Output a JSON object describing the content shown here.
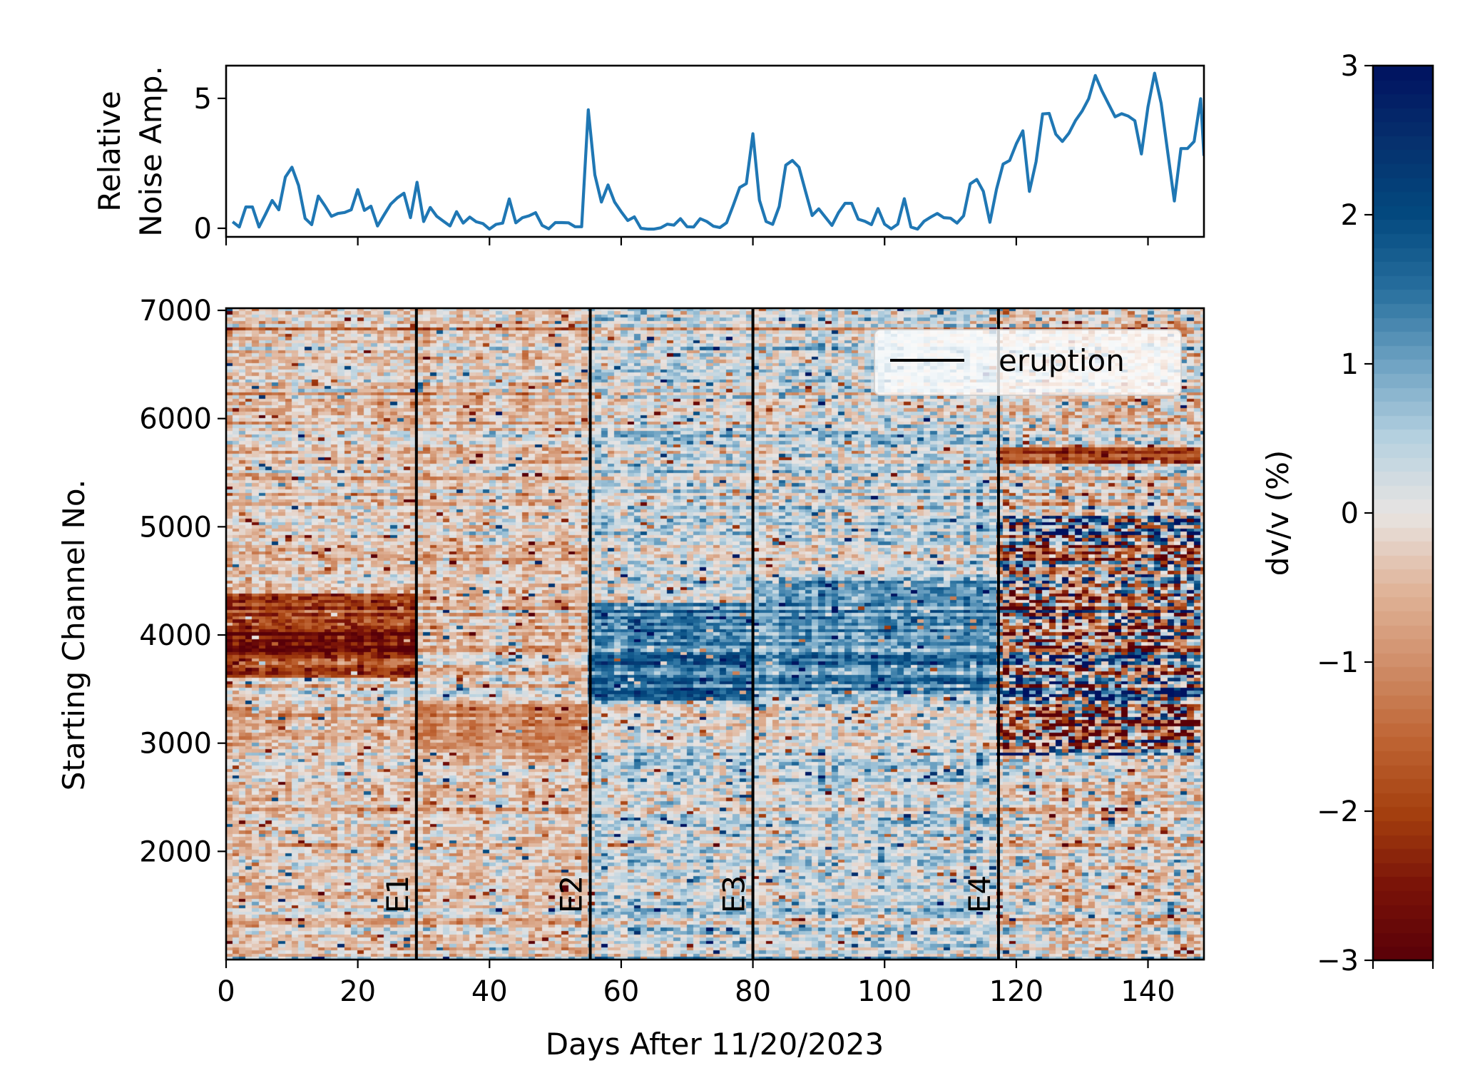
{
  "chart_data": [
    {
      "type": "line",
      "panel": "top",
      "title": "",
      "xlabel": "",
      "ylabel_lines": [
        "Relative",
        "Noise Amp."
      ],
      "xlim": [
        0,
        148.5
      ],
      "ylim": [
        -0.33,
        6.26
      ],
      "xticks": [
        0,
        20,
        40,
        60,
        80,
        100,
        120,
        140
      ],
      "xtick_labels_visible": false,
      "yticks": [
        0,
        5
      ],
      "ytick_labels": [
        "0",
        "5"
      ],
      "line_color": "#1f77b4",
      "series": [
        {
          "name": "Relative Noise Amp.",
          "x": [
            1,
            2,
            3,
            4,
            5,
            6,
            7,
            8,
            9,
            10,
            11,
            12,
            13,
            14,
            15,
            16,
            17,
            18,
            19,
            20,
            21,
            22,
            23,
            24,
            25,
            26,
            27,
            28,
            29,
            30,
            31,
            32,
            33,
            34,
            35,
            36,
            37,
            38,
            39,
            40,
            41,
            42,
            43,
            44,
            45,
            46,
            47,
            48,
            49,
            50,
            51,
            52,
            53,
            54,
            55,
            56,
            57,
            58,
            59,
            60,
            61,
            62,
            63,
            64,
            65,
            66,
            67,
            68,
            69,
            70,
            71,
            72,
            73,
            74,
            75,
            76,
            77,
            78,
            79,
            80,
            81,
            82,
            83,
            84,
            85,
            86,
            87,
            88,
            89,
            90,
            91,
            92,
            93,
            94,
            95,
            96,
            97,
            98,
            99,
            100,
            101,
            102,
            103,
            104,
            105,
            106,
            107,
            108,
            109,
            110,
            111,
            112,
            113,
            114,
            115,
            116,
            117,
            118,
            119,
            120,
            121,
            122,
            123,
            124,
            125,
            126,
            127,
            128,
            129,
            130,
            131,
            132,
            133,
            134,
            135,
            136,
            137,
            138,
            139,
            140,
            141,
            142,
            143,
            144,
            145,
            146,
            147,
            148,
            148.5
          ],
          "y": [
            0.25,
            0.05,
            0.82,
            0.82,
            0.05,
            0.55,
            1.07,
            0.71,
            1.97,
            2.35,
            1.65,
            0.38,
            0.14,
            1.24,
            0.87,
            0.46,
            0.57,
            0.61,
            0.71,
            1.49,
            0.69,
            0.85,
            0.09,
            0.52,
            0.93,
            1.17,
            1.35,
            0.41,
            1.77,
            0.26,
            0.8,
            0.46,
            0.27,
            0.09,
            0.64,
            0.2,
            0.43,
            0.25,
            0.18,
            -0.03,
            0.15,
            0.2,
            1.13,
            0.21,
            0.41,
            0.48,
            0.6,
            0.11,
            -0.02,
            0.22,
            0.22,
            0.21,
            0.06,
            0.06,
            4.56,
            2.06,
            1.01,
            1.67,
            1.01,
            0.64,
            0.3,
            0.44,
            0.0,
            -0.03,
            -0.03,
            0.02,
            0.16,
            0.12,
            0.37,
            0.06,
            0.05,
            0.37,
            0.26,
            0.08,
            0.03,
            0.21,
            0.87,
            1.57,
            1.72,
            3.64,
            1.08,
            0.26,
            0.15,
            0.84,
            2.43,
            2.61,
            2.35,
            1.42,
            0.49,
            0.75,
            0.43,
            0.11,
            0.6,
            0.96,
            0.96,
            0.35,
            0.27,
            0.14,
            0.76,
            0.16,
            -0.02,
            0.16,
            1.14,
            0.05,
            -0.03,
            0.27,
            0.43,
            0.57,
            0.41,
            0.39,
            0.2,
            0.48,
            1.71,
            1.88,
            1.42,
            0.23,
            1.51,
            2.47,
            2.61,
            3.25,
            3.75,
            1.42,
            2.56,
            4.4,
            4.42,
            3.62,
            3.34,
            3.66,
            4.15,
            4.51,
            4.99,
            5.88,
            5.29,
            4.79,
            4.29,
            4.41,
            4.32,
            4.14,
            2.86,
            4.67,
            5.97,
            4.81,
            2.93,
            1.05,
            3.07,
            3.07,
            3.34,
            4.99,
            2.79
          ]
        }
      ]
    },
    {
      "type": "heatmap",
      "panel": "bottom",
      "title": "",
      "xlabel": "Days After 11/20/2023",
      "ylabel": "Starting Channel No.",
      "xlim": [
        0,
        148.5
      ],
      "ylim": [
        1000,
        7020
      ],
      "xticks": [
        0,
        20,
        40,
        60,
        80,
        100,
        120,
        140
      ],
      "xtick_labels": [
        "0",
        "20",
        "40",
        "60",
        "80",
        "100",
        "120",
        "140"
      ],
      "yticks": [
        2000,
        3000,
        4000,
        5000,
        6000,
        7000
      ],
      "ytick_labels": [
        "2000",
        "3000",
        "4000",
        "5000",
        "6000",
        "7000"
      ],
      "value_name": "dv/v (%)",
      "color_range": [
        -3,
        3
      ],
      "cell_days": 1,
      "cell_channels": 30,
      "patterns": [
        {
          "days": [
            0,
            29
          ],
          "channels": [
            1000,
            7020
          ],
          "mean": -0.35,
          "noise": 0.7
        },
        {
          "days": [
            0,
            29
          ],
          "channels": [
            3600,
            4400
          ],
          "mean": -1.9,
          "noise": 0.6
        },
        {
          "days": [
            0,
            29
          ],
          "channels": [
            3800,
            4050
          ],
          "mean": -2.5,
          "noise": 0.5
        },
        {
          "days": [
            29,
            55.3
          ],
          "channels": [
            1000,
            7020
          ],
          "mean": -0.3,
          "noise": 0.7
        },
        {
          "days": [
            29,
            55.3
          ],
          "channels": [
            2800,
            3400
          ],
          "mean": -0.8,
          "noise": 0.5
        },
        {
          "days": [
            55.3,
            80
          ],
          "channels": [
            1000,
            7020
          ],
          "mean": 0.25,
          "noise": 0.75
        },
        {
          "days": [
            55.3,
            80
          ],
          "channels": [
            3400,
            4300
          ],
          "mean": 1.5,
          "noise": 0.6
        },
        {
          "days": [
            80,
            117.3
          ],
          "channels": [
            1000,
            7020
          ],
          "mean": 0.3,
          "noise": 0.75
        },
        {
          "days": [
            80,
            117.3
          ],
          "channels": [
            3500,
            4500
          ],
          "mean": 1.3,
          "noise": 0.6
        },
        {
          "days": [
            117.3,
            148.5
          ],
          "channels": [
            1000,
            7020
          ],
          "mean": -0.2,
          "noise": 1.0
        },
        {
          "days": [
            117.3,
            148.5
          ],
          "channels": [
            5600,
            5750
          ],
          "mean": -1.8,
          "noise": 0.5
        },
        {
          "days": [
            117.3,
            148.5
          ],
          "channels": [
            2900,
            5100
          ],
          "mean": 0.0,
          "noise": 2.8
        }
      ]
    },
    {
      "type": "colorbar",
      "label": "dv/v (%)",
      "range": [
        -3,
        3
      ],
      "ticks": [
        -3,
        -2,
        -1,
        0,
        1,
        2,
        3
      ],
      "tick_labels": [
        "−3",
        "−2",
        "−1",
        "0",
        "1",
        "2",
        "3"
      ],
      "colormap_stops": [
        {
          "value": -3,
          "color": "#590008"
        },
        {
          "value": -2.5,
          "color": "#7a1308"
        },
        {
          "value": -2,
          "color": "#a5400f"
        },
        {
          "value": -1.5,
          "color": "#bf6535"
        },
        {
          "value": -1,
          "color": "#d08f6a"
        },
        {
          "value": -0.5,
          "color": "#e0b59b"
        },
        {
          "value": 0,
          "color": "#e8e4e2"
        },
        {
          "value": 0.5,
          "color": "#b6d1e0"
        },
        {
          "value": 1,
          "color": "#6fa3c3"
        },
        {
          "value": 1.5,
          "color": "#276f9e"
        },
        {
          "value": 2,
          "color": "#03497f"
        },
        {
          "value": 2.5,
          "color": "#06306d"
        },
        {
          "value": 3,
          "color": "#001260"
        }
      ]
    }
  ],
  "eruptions": {
    "legend_label": "eruption",
    "legend_location": "upper right",
    "line_color": "#000000",
    "events": [
      {
        "label": "E1",
        "day": 28.9
      },
      {
        "label": "E2",
        "day": 55.3
      },
      {
        "label": "E3",
        "day": 80.0
      },
      {
        "label": "E4",
        "day": 117.3
      }
    ]
  }
}
